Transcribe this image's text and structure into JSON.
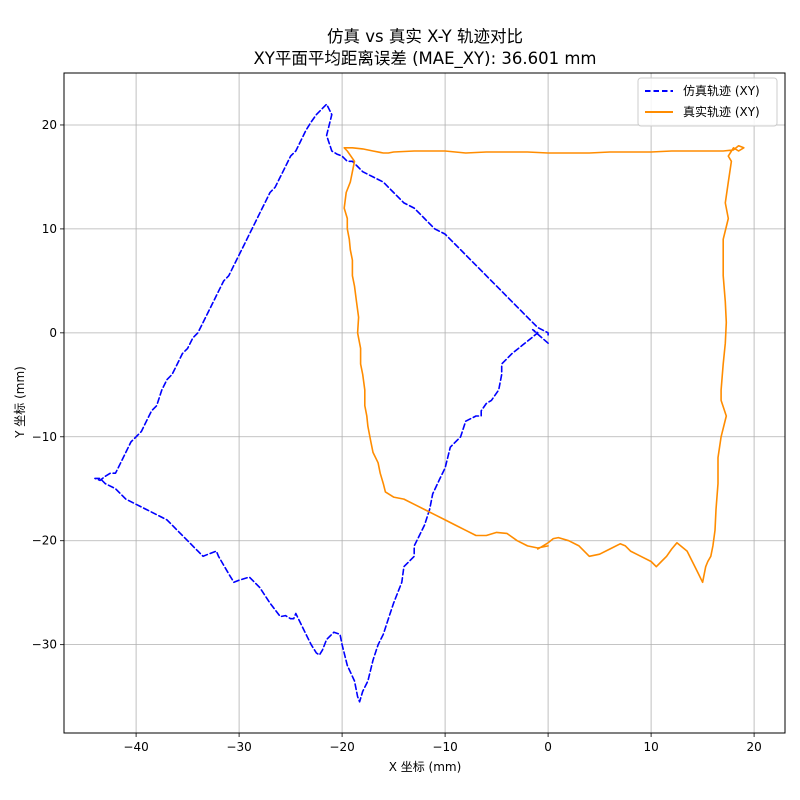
{
  "chart_data": {
    "type": "line",
    "title": "仿真 vs 真实 X-Y 轨迹对比",
    "subtitle": "XY平面平均距离误差 (MAE_XY): 36.601 mm",
    "xlabel": "X 坐标 (mm)",
    "ylabel": "Y 坐标 (mm)",
    "xlim": [
      -47,
      23
    ],
    "ylim": [
      -38.5,
      25
    ],
    "xticks": [
      -40,
      -30,
      -20,
      -10,
      0,
      10,
      20
    ],
    "yticks": [
      -30,
      -20,
      -10,
      0,
      10,
      20
    ],
    "xtick_labels": [
      "−40",
      "−30",
      "−20",
      "−10",
      "0",
      "10",
      "20"
    ],
    "ytick_labels": [
      "−30",
      "−20",
      "−10",
      "0",
      "10",
      "20"
    ],
    "grid": true,
    "legend_position": "top-right",
    "series": [
      {
        "name": "仿真轨迹 (XY)",
        "color": "#0000ff",
        "style": "dashed",
        "x": [
          0.0,
          -1.5,
          -1.0,
          -2.0,
          -2.5,
          -3.5,
          -4.5,
          -4.5,
          -4.8,
          -5.5,
          -6.0,
          -6.5,
          -6.5,
          -7.0,
          -8.0,
          -8.5,
          -9.5,
          -10.0,
          -10.5,
          -11.2,
          -11.5,
          -12.0,
          -12.5,
          -13.0,
          -13.0,
          -13.5,
          -14.0,
          -14.2,
          -14.6,
          -15.0,
          -15.5,
          -16.0,
          -16.5,
          -17.0,
          -17.5,
          -18.0,
          -18.3,
          -18.5,
          -18.8,
          -19.5,
          -20.0,
          -20.2,
          -20.8,
          -21.5,
          -21.9,
          -22.2,
          -22.5,
          -23.0,
          -23.5,
          -24.0,
          -24.5,
          -24.7,
          -25.0,
          -25.5,
          -26.0,
          -27.0,
          -28.0,
          -29.0,
          -30.0,
          -30.5,
          -31.0,
          -32.0,
          -32.2,
          -33.0,
          -33.5,
          -34.0,
          -35.0,
          -36.0,
          -37.0,
          -38.0,
          -39.0,
          -40.0,
          -41.0,
          -42.0,
          -43.0,
          -43.5,
          -44.0,
          -43.5,
          -43.0,
          -42.5,
          -42.0,
          -41.5,
          -41.0,
          -40.5,
          -40.0,
          -39.5,
          -39.5,
          -39.0,
          -38.5,
          -38.0,
          -37.5,
          -37.0,
          -36.5,
          -36.0,
          -35.5,
          -35.0,
          -34.5,
          -34.0,
          -33.5,
          -33.0,
          -32.5,
          -32.0,
          -31.5,
          -31.0,
          -30.5,
          -30.0,
          -29.5,
          -29.0,
          -28.5,
          -28.0,
          -27.5,
          -27.0,
          -26.5,
          -26.0,
          -25.5,
          -25.0,
          -24.5,
          -24.0,
          -23.5,
          -23.0,
          -22.5,
          -22.0,
          -21.5,
          -21.0,
          -21.5,
          -21.0,
          -20.5,
          -20.0,
          -19.5,
          -19.0,
          -18.5,
          -18.0,
          -17.0,
          -16.0,
          -15.0,
          -14.0,
          -13.0,
          -12.0,
          -11.0,
          -10.0,
          -9.0,
          -8.0,
          -7.0,
          -6.0,
          -5.0,
          -4.0,
          -3.0,
          -2.0,
          -1.0,
          0.0,
          0.0
        ],
        "y": [
          -1.0,
          0.3,
          0.0,
          -0.8,
          -1.2,
          -2.0,
          -3.0,
          -4.0,
          -5.5,
          -6.5,
          -6.8,
          -7.5,
          -8.0,
          -8.0,
          -8.5,
          -10.0,
          -11.0,
          -13.0,
          -14.0,
          -15.5,
          -17.0,
          -18.5,
          -19.5,
          -20.5,
          -21.5,
          -22.0,
          -22.5,
          -24.0,
          -25.0,
          -26.0,
          -27.5,
          -29.0,
          -30.0,
          -31.5,
          -33.5,
          -34.5,
          -35.5,
          -35.0,
          -33.5,
          -32.0,
          -30.0,
          -29.0,
          -28.8,
          -29.5,
          -30.5,
          -31.0,
          -30.8,
          -30.0,
          -29.0,
          -28.0,
          -27.0,
          -27.5,
          -27.5,
          -27.2,
          -27.3,
          -26.0,
          -24.5,
          -23.5,
          -23.8,
          -24.0,
          -23.2,
          -21.5,
          -21.0,
          -21.3,
          -21.5,
          -21.0,
          -20.0,
          -19.0,
          -18.0,
          -17.5,
          -17.0,
          -16.5,
          -16.0,
          -15.0,
          -14.5,
          -14.0,
          -14.0,
          -14.2,
          -13.8,
          -13.5,
          -13.5,
          -12.5,
          -11.5,
          -10.5,
          -10.0,
          -9.5,
          -9.5,
          -8.5,
          -7.5,
          -7.0,
          -5.5,
          -4.5,
          -4.0,
          -3.0,
          -2.0,
          -1.5,
          -0.5,
          0.0,
          1.0,
          2.0,
          3.0,
          4.0,
          5.0,
          5.5,
          6.5,
          7.5,
          8.5,
          9.5,
          10.5,
          11.5,
          12.5,
          13.5,
          14.0,
          15.0,
          16.0,
          17.0,
          17.5,
          18.5,
          19.5,
          20.3,
          21.0,
          21.5,
          22.0,
          21.0,
          19.0,
          17.5,
          17.2,
          17.0,
          16.5,
          16.5,
          16.0,
          15.5,
          15.0,
          14.5,
          13.5,
          12.5,
          12.0,
          11.0,
          10.0,
          9.5,
          8.5,
          7.5,
          6.5,
          5.5,
          4.5,
          3.5,
          2.5,
          1.5,
          0.5,
          0.0,
          -0.2
        ]
      },
      {
        "name": "真实轨迹 (XY)",
        "color": "#ff8c00",
        "style": "solid",
        "x": [
          0.0,
          -1.0,
          -2.0,
          -3.0,
          -4.0,
          -5.0,
          -6.0,
          -7.0,
          -8.0,
          -9.0,
          -10.0,
          -11.0,
          -12.0,
          -13.0,
          -14.0,
          -15.0,
          -15.8,
          -16.0,
          -16.3,
          -16.5,
          -17.0,
          -17.2,
          -17.5,
          -17.6,
          -17.8,
          -17.8,
          -18.0,
          -18.2,
          -18.2,
          -18.5,
          -18.4,
          -18.6,
          -18.8,
          -19.0,
          -19.0,
          -19.2,
          -19.3,
          -19.5,
          -19.5,
          -19.8,
          -19.6,
          -19.2,
          -19.0,
          -18.8,
          -19.5,
          -19.8,
          -19.5,
          -19.0,
          -18.0,
          -17.0,
          -16.0,
          -15.5,
          -15.0,
          -13.0,
          -12.0,
          -11.0,
          -10.0,
          -8.0,
          -6.0,
          -4.0,
          -2.0,
          0.0,
          2.0,
          4.0,
          6.0,
          8.0,
          10.0,
          12.0,
          14.0,
          16.0,
          17.0,
          18.0,
          18.5,
          19.0,
          18.5,
          18.0,
          17.5,
          17.8,
          17.5,
          17.2,
          17.5,
          17.0,
          17.0,
          17.0,
          17.2,
          17.3,
          17.2,
          17.0,
          16.8,
          16.8,
          17.3,
          16.8,
          16.5,
          16.5,
          16.3,
          16.2,
          16.0,
          15.8,
          15.5,
          15.3,
          15.0,
          14.5,
          14.0,
          13.5,
          12.5,
          12.0,
          11.5,
          11.0,
          10.5,
          10.0,
          9.0,
          8.0,
          7.5,
          7.0,
          6.0,
          5.0,
          4.0,
          3.5,
          3.0,
          2.0,
          1.0,
          0.5,
          0.0,
          -0.5,
          -1.0
        ],
        "y": [
          -20.5,
          -20.7,
          -20.5,
          -20.0,
          -19.3,
          -19.2,
          -19.5,
          -19.5,
          -19.0,
          -18.5,
          -18.0,
          -17.5,
          -17.0,
          -16.5,
          -16.0,
          -15.8,
          -15.3,
          -14.5,
          -13.5,
          -12.5,
          -11.5,
          -10.5,
          -9.0,
          -8.0,
          -7.0,
          -5.5,
          -4.0,
          -3.0,
          -1.5,
          0.0,
          1.5,
          3.0,
          4.5,
          5.5,
          7.0,
          8.0,
          9.0,
          10.0,
          11.0,
          12.0,
          13.5,
          14.5,
          15.5,
          16.5,
          17.5,
          17.8,
          17.8,
          17.8,
          17.7,
          17.5,
          17.3,
          17.3,
          17.4,
          17.5,
          17.5,
          17.5,
          17.5,
          17.3,
          17.4,
          17.4,
          17.4,
          17.3,
          17.3,
          17.3,
          17.4,
          17.4,
          17.4,
          17.5,
          17.5,
          17.5,
          17.5,
          17.6,
          18.0,
          17.8,
          17.5,
          17.8,
          17.0,
          16.5,
          14.5,
          12.5,
          11.0,
          9.0,
          7.5,
          5.5,
          3.0,
          1.0,
          -1.0,
          -3.0,
          -5.5,
          -6.5,
          -8.0,
          -10.0,
          -12.0,
          -14.5,
          -17.0,
          -19.0,
          -20.5,
          -21.5,
          -22.0,
          -22.5,
          -24.0,
          -23.0,
          -22.0,
          -21.0,
          -20.2,
          -20.8,
          -21.5,
          -22.0,
          -22.5,
          -22.0,
          -21.5,
          -21.0,
          -20.5,
          -20.3,
          -20.8,
          -21.3,
          -21.5,
          -21.0,
          -20.5,
          -20.0,
          -19.7,
          -19.8,
          -20.2,
          -20.5,
          -20.8
        ]
      }
    ]
  }
}
